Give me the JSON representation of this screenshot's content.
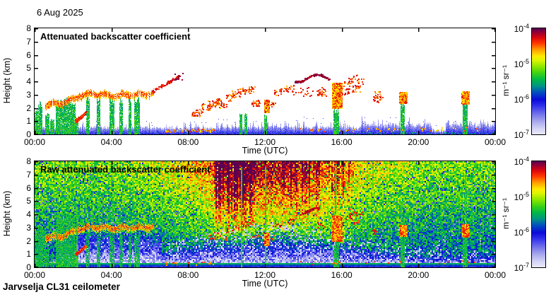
{
  "page": {
    "date_label": "6 Aug 2025",
    "footer": "Jarvselja CL31 ceilometer",
    "background": "#ffffff",
    "text_color": "#000000"
  },
  "chart_data": {
    "type": "heatmap",
    "x": {
      "label": "Time (UTC)",
      "range_hours": [
        0,
        24
      ],
      "ticks": [
        "00:00",
        "04:00",
        "08:00",
        "12:00",
        "16:00",
        "20:00",
        "00:00"
      ]
    },
    "y": {
      "label": "Height (km)",
      "range_km": [
        0,
        8
      ],
      "ticks": [
        "0",
        "1",
        "2",
        "3",
        "4",
        "5",
        "6",
        "7",
        "8"
      ]
    },
    "colorbar": {
      "unit": "m⁻¹ sr⁻¹",
      "scale": "log",
      "range": [
        1e-07,
        0.0001
      ],
      "ticks": [
        {
          "base": "10",
          "exp": "-4"
        },
        {
          "base": "10",
          "exp": "-5"
        },
        {
          "base": "10",
          "exp": "-6"
        },
        {
          "base": "10",
          "exp": "-7"
        }
      ]
    },
    "colormap_stops": [
      [
        0.0,
        [
          235,
          235,
          250
        ]
      ],
      [
        0.06,
        [
          210,
          210,
          245
        ]
      ],
      [
        0.13,
        [
          165,
          165,
          238
        ]
      ],
      [
        0.2,
        [
          110,
          110,
          235
        ]
      ],
      [
        0.27,
        [
          50,
          50,
          235
        ]
      ],
      [
        0.33,
        [
          10,
          10,
          215
        ]
      ],
      [
        0.4,
        [
          0,
          80,
          190
        ]
      ],
      [
        0.46,
        [
          0,
          150,
          130
        ]
      ],
      [
        0.52,
        [
          0,
          185,
          70
        ]
      ],
      [
        0.58,
        [
          60,
          210,
          20
        ]
      ],
      [
        0.64,
        [
          140,
          230,
          0
        ]
      ],
      [
        0.7,
        [
          220,
          245,
          0
        ]
      ],
      [
        0.74,
        [
          255,
          235,
          0
        ]
      ],
      [
        0.8,
        [
          255,
          160,
          0
        ]
      ],
      [
        0.86,
        [
          255,
          60,
          0
        ]
      ],
      [
        0.91,
        [
          225,
          10,
          10
        ]
      ],
      [
        0.95,
        [
          170,
          0,
          40
        ]
      ],
      [
        1.0,
        [
          90,
          0,
          80
        ]
      ]
    ],
    "panels": [
      {
        "title": "Attenuated backscatter coefficient",
        "kind": "processed",
        "seed": 7
      },
      {
        "title": "Raw attenuated backscatter coefficient",
        "kind": "raw",
        "seed": 42,
        "noise": {
          "day_center_h": 12.3,
          "day_sigma_h": 4.6,
          "base_u": 0.4,
          "height_gain": 0.22,
          "day_height_gain": 0.3,
          "day_gain": 0.04,
          "suppress_depth": 0.3,
          "speckle_white_frac": 0.16,
          "blue_speckle_frac": 0.07,
          "morning_suppress": {
            "t0": 1.2,
            "t1": 6.6,
            "h": 2.6
          },
          "red_bands": [
            9.3,
            11.45
          ],
          "red_bands2": [
            12.8,
            16.9
          ],
          "bottom_solid_km": 0.35
        }
      }
    ],
    "features": {
      "layer_path": [
        [
          0.55,
          2.25
        ],
        [
          1.5,
          2.4
        ],
        [
          2.3,
          2.9
        ],
        [
          3.0,
          3.1
        ],
        [
          4.0,
          2.95
        ],
        [
          5.0,
          3.05
        ],
        [
          5.8,
          3.0
        ],
        [
          6.2,
          3.2
        ]
      ],
      "layer_range": [
        0.55,
        6.2
      ],
      "layer_thickness": 0.16,
      "streak": {
        "t0": 6.1,
        "t1": 7.55,
        "h0": 3.25,
        "h1": 4.45
      },
      "red_diag": {
        "t0": 2.1,
        "t1": 2.65,
        "h0": 1.0,
        "h1": 1.65
      },
      "green_columns": [
        [
          0.0,
          0.18,
          2.0
        ],
        [
          0.18,
          0.38,
          2.5
        ],
        [
          0.55,
          0.75,
          1.6
        ],
        [
          0.8,
          1.0,
          1.2
        ],
        [
          1.1,
          1.55,
          2.7
        ],
        [
          1.55,
          2.1,
          2.75
        ],
        [
          2.15,
          2.28,
          1.4
        ],
        [
          2.7,
          2.87,
          2.9
        ],
        [
          3.25,
          3.42,
          2.9
        ],
        [
          3.9,
          4.15,
          2.9
        ],
        [
          4.4,
          4.57,
          2.9
        ],
        [
          4.88,
          5.02,
          2.9
        ],
        [
          5.2,
          5.45,
          2.9
        ],
        [
          10.68,
          10.8,
          1.8
        ],
        [
          10.95,
          11.07,
          1.6
        ],
        [
          11.95,
          12.1,
          1.5
        ],
        [
          15.58,
          15.85,
          2.0
        ],
        [
          19.05,
          19.27,
          2.5
        ],
        [
          22.3,
          22.56,
          2.8
        ]
      ],
      "caps": [
        [
          0.62,
          0.74,
          2.05,
          2.35
        ],
        [
          11.95,
          12.18,
          1.7,
          2.6
        ],
        [
          15.5,
          15.98,
          2.0,
          3.9
        ],
        [
          19.0,
          19.35,
          2.4,
          3.2
        ],
        [
          22.25,
          22.62,
          2.35,
          3.25
        ]
      ],
      "cumulus": [
        [
          8.35,
          1.6
        ],
        [
          8.6,
          1.85
        ],
        [
          8.9,
          2.1
        ],
        [
          9.2,
          2.35
        ],
        [
          9.5,
          2.5
        ],
        [
          9.8,
          2.2
        ],
        [
          10.15,
          2.8
        ],
        [
          10.45,
          3.05
        ],
        [
          10.8,
          3.3
        ],
        [
          11.2,
          3.4
        ],
        [
          11.5,
          2.4
        ],
        [
          12.3,
          2.25
        ],
        [
          12.6,
          3.25
        ],
        [
          12.95,
          3.4
        ],
        [
          13.3,
          3.5
        ],
        [
          14.9,
          3.2
        ],
        [
          16.15,
          3.3
        ],
        [
          16.35,
          3.85
        ],
        [
          16.55,
          4.3
        ],
        [
          16.7,
          3.5
        ],
        [
          16.9,
          4.05
        ],
        [
          17.8,
          2.7
        ],
        [
          17.95,
          3.0
        ]
      ],
      "purple_dots": [
        [
          7.25,
          7.75,
          4.15,
          4.65
        ]
      ],
      "purple_wave": {
        "t0": 13.55,
        "t1": 15.35,
        "h0": 4.0,
        "h1": 4.55
      },
      "red_mid_dots": {
        "t0": 13.4,
        "t1": 15.2,
        "h0": 2.9,
        "h1": 3.6,
        "n": 26
      },
      "surface_dots": [
        [
          6.8,
          9.4,
          0.2,
          0.45,
          44
        ],
        [
          13.8,
          19.2,
          0.25,
          0.5,
          30
        ],
        [
          20.0,
          23.5,
          0.3,
          0.6,
          16
        ]
      ],
      "band_gap": [
        20.7,
        21.4
      ],
      "thin_green_lines": [
        [
          2.18,
          4.5
        ],
        [
          10.74,
          7.6
        ],
        [
          12.0,
          7.6
        ],
        [
          15.66,
          7.6
        ],
        [
          19.12,
          5.0
        ],
        [
          22.42,
          7.0
        ]
      ],
      "wide_green": [
        [
          0.0,
          0.6,
          3.2
        ],
        [
          1.1,
          2.1,
          4.3
        ]
      ],
      "dark_blob": {
        "t0": 13.8,
        "t1": 14.8,
        "h0": 4.0,
        "h1": 4.5
      }
    }
  }
}
